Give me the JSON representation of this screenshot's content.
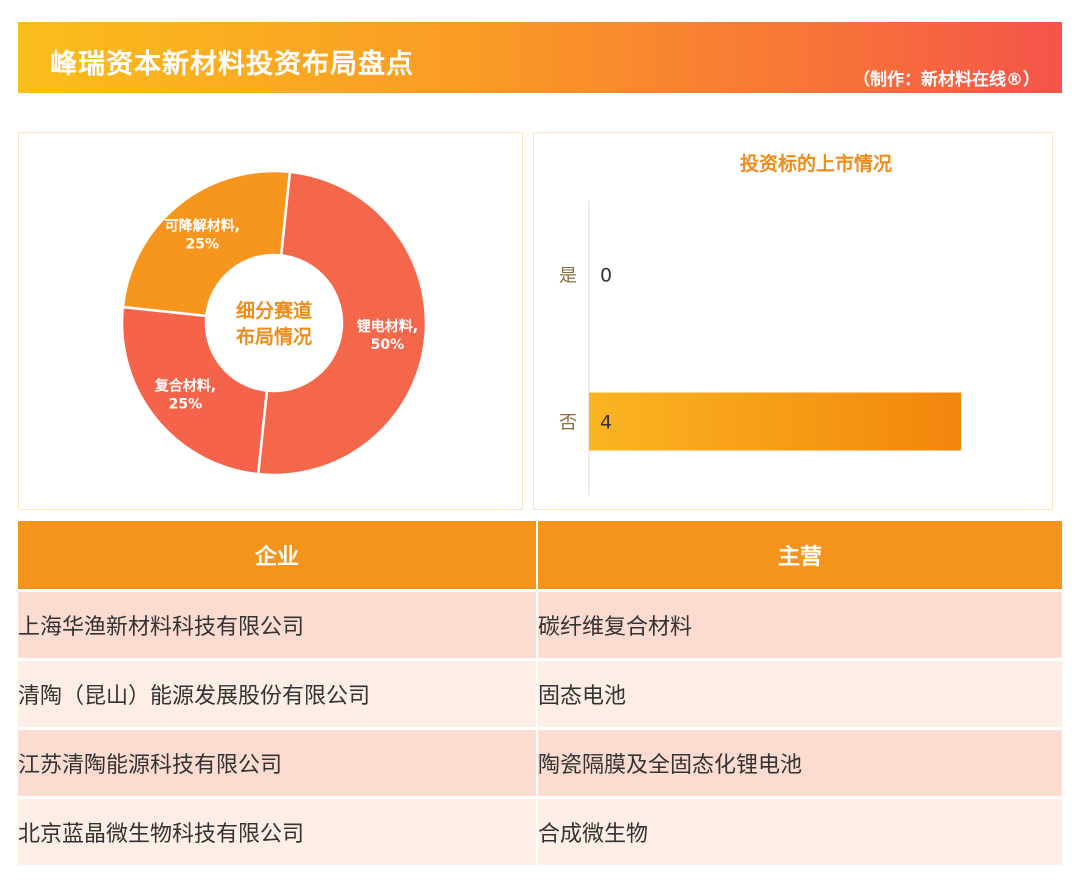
{
  "header": {
    "title": "峰瑞资本新材料投资布局盘点",
    "credit": "（制作：新材料在线®）"
  },
  "colors": {
    "banner_start": "#fbbd1c",
    "banner_end": "#f4534a",
    "donut_battery": "#f5674a",
    "donut_composite": "#f4634a",
    "donut_degradable": "#f7961e",
    "center_text": "#f08c1a",
    "bar_fill_start": "#fbb521",
    "bar_fill_end": "#f2850c",
    "table_header": "#f5941d",
    "row_odd": "#fcdcd1",
    "row_even": "#feeee6"
  },
  "chart_data": [
    {
      "type": "pie",
      "center_label": [
        "细分赛道",
        "布局情况"
      ],
      "slices": [
        {
          "label": "锂电材料,",
          "value": 50,
          "display": "50%"
        },
        {
          "label": "复合材料,",
          "value": 25,
          "display": "25%"
        },
        {
          "label": "可降解材料,",
          "value": 25,
          "display": "25%"
        }
      ]
    },
    {
      "type": "bar",
      "orientation": "horizontal",
      "title": "投资标的上市情况",
      "categories": [
        "是",
        "否"
      ],
      "values": [
        0,
        4
      ],
      "xlim": [
        0,
        4.3
      ]
    }
  ],
  "table": {
    "headers": [
      "企业",
      "主营"
    ],
    "rows": [
      [
        "上海华渔新材料科技有限公司",
        "碳纤维复合材料"
      ],
      [
        "清陶（昆山）能源发展股份有限公司",
        "固态电池"
      ],
      [
        "江苏清陶能源科技有限公司",
        "陶瓷隔膜及全固态化锂电池"
      ],
      [
        "北京蓝晶微生物科技有限公司",
        "合成微生物"
      ]
    ]
  }
}
